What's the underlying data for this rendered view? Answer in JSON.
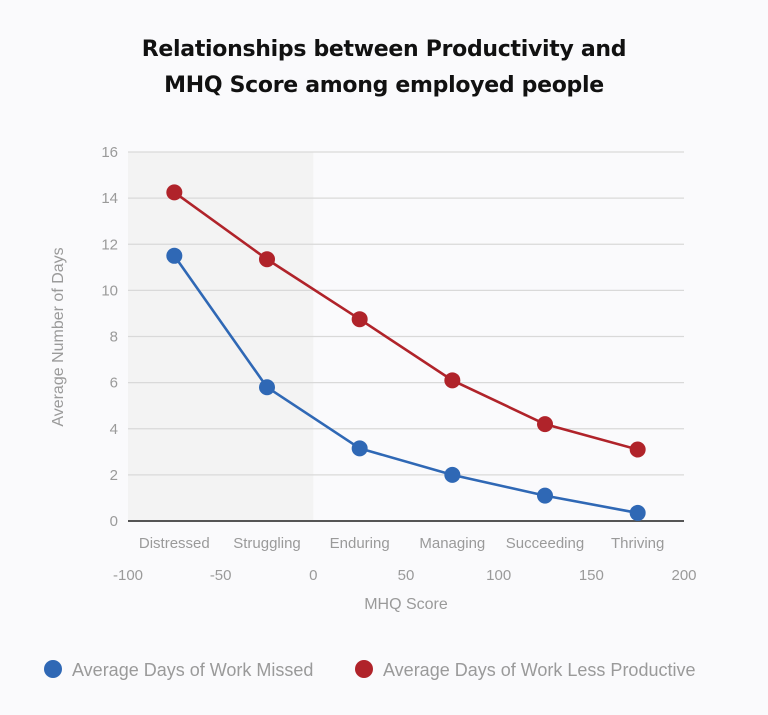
{
  "chart_data": {
    "type": "line",
    "title": [
      "Relationships between Productivity and",
      "MHQ Score among employed people"
    ],
    "xlabel": "MHQ Score",
    "ylabel": "Average Number of Days",
    "xlim": [
      -100,
      200
    ],
    "ylim": [
      0,
      16
    ],
    "x_ticks": [
      -100,
      -50,
      0,
      50,
      100,
      150,
      200
    ],
    "y_ticks": [
      0,
      2,
      4,
      6,
      8,
      10,
      12,
      14,
      16
    ],
    "categories": [
      "Distressed",
      "Struggling",
      "Enduring",
      "Managing",
      "Succeeding",
      "Thriving"
    ],
    "x": [
      -75,
      -25,
      25,
      75,
      125,
      175
    ],
    "shaded_region": [
      -100,
      0
    ],
    "grid": true,
    "legend_position": "bottom",
    "series": [
      {
        "name": "Average Days of Work Missed",
        "color": "#2f68b5",
        "values": [
          11.5,
          5.8,
          3.15,
          2.0,
          1.1,
          0.35
        ]
      },
      {
        "name": "Average Days of Work Less Productive",
        "color": "#b0232a",
        "values": [
          14.25,
          11.35,
          8.75,
          6.1,
          4.2,
          3.1
        ]
      }
    ]
  }
}
